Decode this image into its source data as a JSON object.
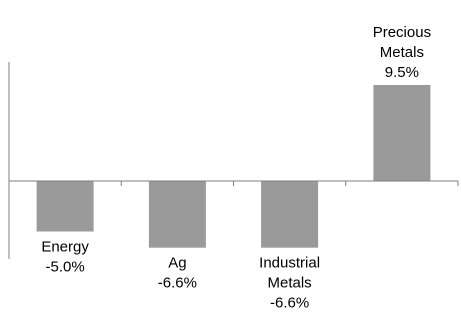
{
  "chart_data": {
    "type": "bar",
    "categories": [
      "Energy",
      "Ag",
      "Industrial Metals",
      "Precious Metals"
    ],
    "values": [
      -5.0,
      -6.6,
      -6.6,
      9.5
    ],
    "data_labels": [
      "-5.0%",
      "-6.6%",
      "-6.6%",
      "9.5%"
    ],
    "label_lines": [
      [
        "Energy"
      ],
      [
        "Ag"
      ],
      [
        "Industrial",
        "Metals"
      ],
      [
        "Precious",
        "Metals"
      ]
    ],
    "title": "",
    "xlabel": "",
    "ylabel": "",
    "ylim": [
      -10,
      14
    ],
    "grid": false,
    "legend": "none",
    "colors": {
      "bar": "#9a9a9a",
      "axis": "#7f7f7f",
      "text": "#000000"
    }
  }
}
